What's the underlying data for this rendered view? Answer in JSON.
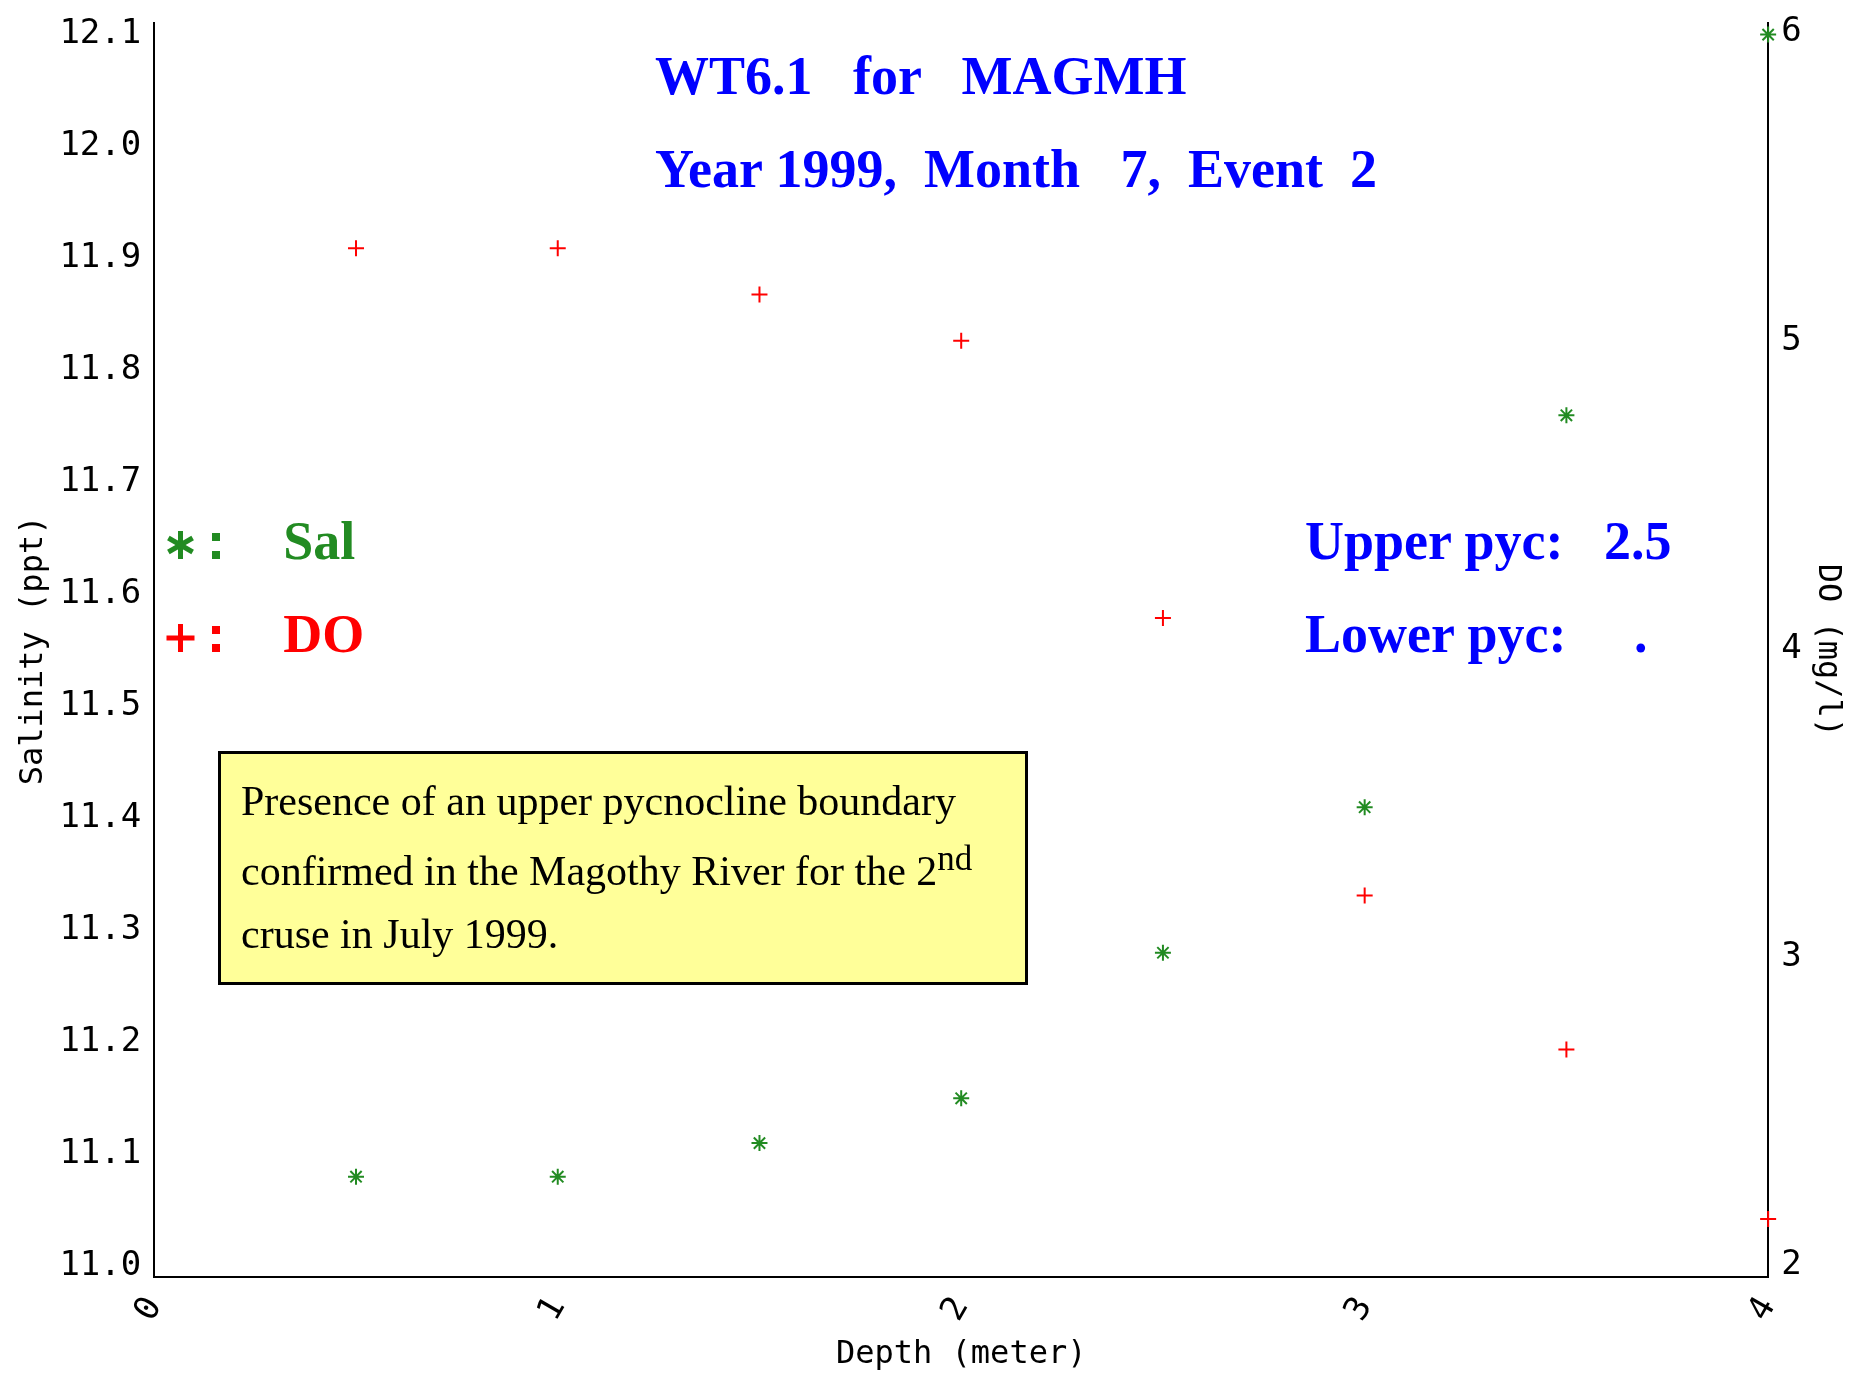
{
  "chart_data": {
    "type": "scatter",
    "title": "WT6.1   for   MAGMH",
    "subtitle": "Year 1999,  Month   7,  Event  2",
    "xlabel": "Depth (meter)",
    "ylabel": "Salinity (ppt)",
    "y2label": "DO (mg/l)",
    "x": [
      0.5,
      1,
      1.5,
      2,
      2.5,
      3,
      3.5,
      4
    ],
    "series": [
      {
        "name": "Sal",
        "color": "#228b22",
        "values": [
          11.08,
          11.08,
          11.11,
          11.15,
          11.28,
          11.41,
          11.76,
          12.1
        ]
      },
      {
        "name": "DO",
        "color": "#ff0000",
        "marker": "cross",
        "axis": "y2",
        "values": [
          5.3,
          5.3,
          5.15,
          5.0,
          4.1,
          3.2,
          2.7,
          2.15
        ]
      }
    ],
    "xlim": [
      0,
      4
    ],
    "xticks": [
      0,
      1,
      2,
      3,
      4
    ],
    "ylim": [
      10.99,
      12.11
    ],
    "yticks": [
      {
        "value": 11,
        "label": "11.0"
      },
      11.1,
      11.2,
      11.3,
      11.4,
      11.5,
      11.6,
      11.7,
      11.8,
      11.9,
      {
        "value": 12,
        "label": "12.0"
      },
      12.1
    ],
    "y2lim": [
      1.96,
      6.03
    ],
    "y2ticks": [
      2,
      3,
      4,
      5,
      6
    ],
    "legend": "left",
    "grid": false,
    "annotations": [
      "Upper pyc:   2.5",
      "Lower pyc:     .",
      "Presence of an upper pycnocline boundary confirmed in the Magothy River for the 2$^{nd}$ cruse in July 1999."
    ]
  }
}
